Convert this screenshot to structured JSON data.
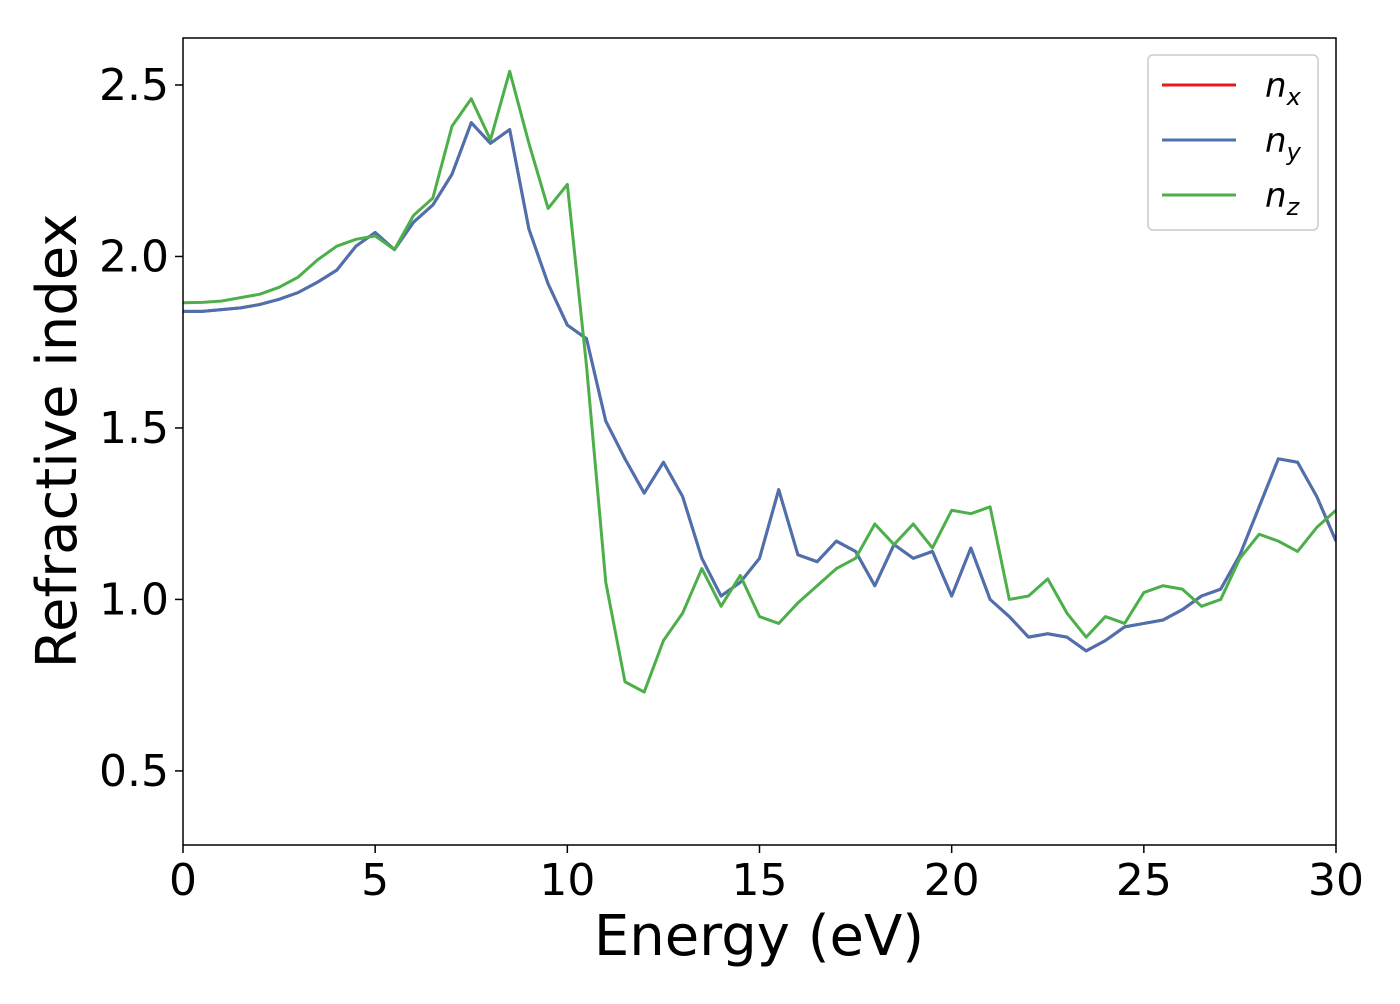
{
  "chart_data": {
    "type": "line",
    "xlabel": "Energy (eV)",
    "ylabel": "Refractive index",
    "x": [
      0,
      0.5,
      1,
      1.5,
      2,
      2.5,
      3,
      3.5,
      4,
      4.5,
      5,
      5.5,
      6,
      6.5,
      7,
      7.5,
      8,
      8.5,
      9,
      9.5,
      10,
      10.5,
      11,
      11.5,
      12,
      12.5,
      13,
      13.5,
      14,
      14.5,
      15,
      15.5,
      16,
      16.5,
      17,
      17.5,
      18,
      18.5,
      19,
      19.5,
      20,
      20.5,
      21,
      21.5,
      22,
      22.5,
      23,
      23.5,
      24,
      24.5,
      25,
      25.5,
      26,
      26.5,
      27,
      27.5,
      28,
      28.5,
      29,
      29.5,
      30
    ],
    "series": [
      {
        "name": "nx",
        "color": "#e41a1c",
        "values": [
          1.84,
          1.84,
          1.845,
          1.85,
          1.86,
          1.875,
          1.895,
          1.925,
          1.96,
          2.03,
          2.07,
          2.02,
          2.1,
          2.15,
          2.24,
          2.39,
          2.33,
          2.37,
          2.08,
          1.92,
          1.8,
          1.76,
          1.52,
          1.41,
          1.31,
          1.4,
          1.3,
          1.12,
          1.01,
          1.05,
          1.12,
          1.32,
          1.13,
          1.11,
          1.17,
          1.14,
          1.04,
          1.16,
          1.12,
          1.14,
          1.01,
          1.15,
          1.0,
          0.95,
          0.89,
          0.9,
          0.89,
          0.85,
          0.88,
          0.92,
          0.93,
          0.94,
          0.97,
          1.01,
          1.03,
          1.13,
          1.27,
          1.41,
          1.4,
          1.3,
          1.17
        ]
      },
      {
        "name": "ny",
        "color": "#4a72b0",
        "values": [
          1.84,
          1.84,
          1.845,
          1.85,
          1.86,
          1.875,
          1.895,
          1.925,
          1.96,
          2.03,
          2.07,
          2.02,
          2.1,
          2.15,
          2.24,
          2.39,
          2.33,
          2.37,
          2.08,
          1.92,
          1.8,
          1.76,
          1.52,
          1.41,
          1.31,
          1.4,
          1.3,
          1.12,
          1.01,
          1.05,
          1.12,
          1.32,
          1.13,
          1.11,
          1.17,
          1.14,
          1.04,
          1.16,
          1.12,
          1.14,
          1.01,
          1.15,
          1.0,
          0.95,
          0.89,
          0.9,
          0.89,
          0.85,
          0.88,
          0.92,
          0.93,
          0.94,
          0.97,
          1.01,
          1.03,
          1.13,
          1.27,
          1.41,
          1.4,
          1.3,
          1.17
        ]
      },
      {
        "name": "nz",
        "color": "#4daf4a",
        "values": [
          1.865,
          1.866,
          1.87,
          1.88,
          1.89,
          1.91,
          1.94,
          1.99,
          2.03,
          2.05,
          2.06,
          2.02,
          2.12,
          2.17,
          2.38,
          2.46,
          2.34,
          2.54,
          2.33,
          2.14,
          2.21,
          1.68,
          1.05,
          0.76,
          0.73,
          0.88,
          0.96,
          1.09,
          0.98,
          1.07,
          0.95,
          0.93,
          0.99,
          1.04,
          1.09,
          1.12,
          1.22,
          1.16,
          1.22,
          1.15,
          1.26,
          1.25,
          1.27,
          1.0,
          1.01,
          1.06,
          0.96,
          0.89,
          0.95,
          0.93,
          1.02,
          1.04,
          1.03,
          0.98,
          1.0,
          1.12,
          1.19,
          1.17,
          1.14,
          1.21,
          1.26
        ]
      }
    ],
    "xlim": [
      0,
      30
    ],
    "xticks": [
      0,
      5,
      10,
      15,
      20,
      25,
      30
    ],
    "ylim": [
      0.284,
      2.637
    ],
    "yticks": [
      0.5,
      1.0,
      1.5,
      2.0,
      2.5
    ],
    "legend": "upper right",
    "grid": false
  }
}
